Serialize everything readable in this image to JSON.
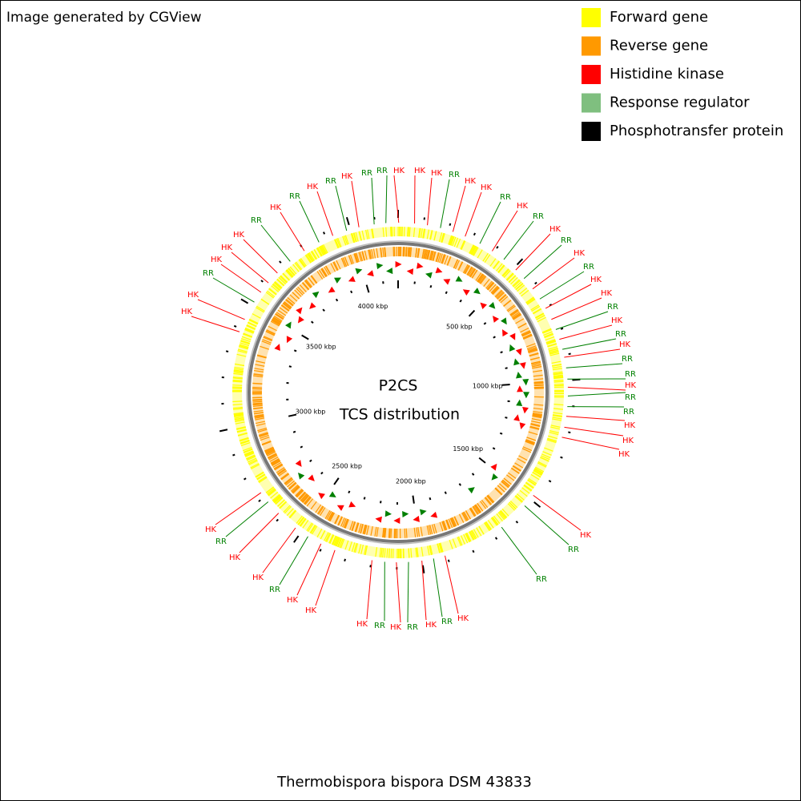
{
  "header": {
    "credit": "Image generated by CGView"
  },
  "center": {
    "title": "P2CS",
    "subtitle": "TCS distribution"
  },
  "footer": {
    "organism": "Thermobispora bispora DSM 43833"
  },
  "legend": [
    {
      "label": "Forward gene",
      "color": "#ffff00"
    },
    {
      "label": "Reverse gene",
      "color": "#ff9900"
    },
    {
      "label": "Histidine kinase",
      "color": "#ff0000"
    },
    {
      "label": "Response regulator",
      "color": "#7fbf7f"
    },
    {
      "label": "Phosphotransfer protein",
      "color": "#000000"
    }
  ],
  "scale_labels": [
    "500 kbp",
    "1000 kbp",
    "1500 kbp",
    "2000 kbp",
    "2500 kbp",
    "3000 kbp",
    "3500 kbp",
    "4000 kbp"
  ],
  "features": [
    {
      "label": "HK",
      "color": "#ff0000"
    },
    {
      "label": "HK",
      "color": "#ff0000"
    },
    {
      "label": "HK",
      "color": "#ff0000"
    },
    {
      "label": "RR",
      "color": "#008000"
    },
    {
      "label": "HK",
      "color": "#ff0000"
    },
    {
      "label": "HK",
      "color": "#ff0000"
    },
    {
      "label": "RR",
      "color": "#008000"
    },
    {
      "label": "HK",
      "color": "#ff0000"
    },
    {
      "label": "RR",
      "color": "#008000"
    },
    {
      "label": "HK",
      "color": "#ff0000"
    },
    {
      "label": "RR",
      "color": "#008000"
    },
    {
      "label": "HK",
      "color": "#ff0000"
    },
    {
      "label": "RR",
      "color": "#008000"
    },
    {
      "label": "HK",
      "color": "#ff0000"
    },
    {
      "label": "HK",
      "color": "#ff0000"
    },
    {
      "label": "RR",
      "color": "#008000"
    },
    {
      "label": "HK",
      "color": "#ff0000"
    },
    {
      "label": "RR",
      "color": "#008000"
    },
    {
      "label": "HK",
      "color": "#ff0000"
    },
    {
      "label": "RR",
      "color": "#008000"
    },
    {
      "label": "RR",
      "color": "#008000"
    },
    {
      "label": "HK",
      "color": "#ff0000"
    },
    {
      "label": "RR",
      "color": "#008000"
    },
    {
      "label": "RR",
      "color": "#008000"
    },
    {
      "label": "HK",
      "color": "#ff0000"
    },
    {
      "label": "HK",
      "color": "#ff0000"
    },
    {
      "label": "HK",
      "color": "#ff0000"
    },
    {
      "label": "HK",
      "color": "#ff0000"
    },
    {
      "label": "RR",
      "color": "#008000"
    },
    {
      "label": "RR",
      "color": "#008000"
    },
    {
      "label": "HK",
      "color": "#ff0000"
    },
    {
      "label": "RR",
      "color": "#008000"
    },
    {
      "label": "HK",
      "color": "#ff0000"
    },
    {
      "label": "RR",
      "color": "#008000"
    },
    {
      "label": "HK",
      "color": "#ff0000"
    },
    {
      "label": "RR",
      "color": "#008000"
    },
    {
      "label": "HK",
      "color": "#ff0000"
    },
    {
      "label": "HK",
      "color": "#ff0000"
    },
    {
      "label": "HK",
      "color": "#ff0000"
    },
    {
      "label": "RR",
      "color": "#008000"
    },
    {
      "label": "HK",
      "color": "#ff0000"
    },
    {
      "label": "HK",
      "color": "#ff0000"
    },
    {
      "label": "RR",
      "color": "#008000"
    },
    {
      "label": "HK",
      "color": "#ff0000"
    },
    {
      "label": "HK",
      "color": "#ff0000"
    },
    {
      "label": "HK",
      "color": "#ff0000"
    },
    {
      "label": "RR",
      "color": "#008000"
    },
    {
      "label": "HK",
      "color": "#ff0000"
    },
    {
      "label": "HK",
      "color": "#ff0000"
    },
    {
      "label": "HK",
      "color": "#ff0000"
    },
    {
      "label": "RR",
      "color": "#008000"
    },
    {
      "label": "HK",
      "color": "#ff0000"
    },
    {
      "label": "RR",
      "color": "#008000"
    },
    {
      "label": "HK",
      "color": "#ff0000"
    },
    {
      "label": "RR",
      "color": "#008000"
    },
    {
      "label": "HK",
      "color": "#ff0000"
    },
    {
      "label": "RR",
      "color": "#008000"
    },
    {
      "label": "RR",
      "color": "#008000"
    }
  ]
}
